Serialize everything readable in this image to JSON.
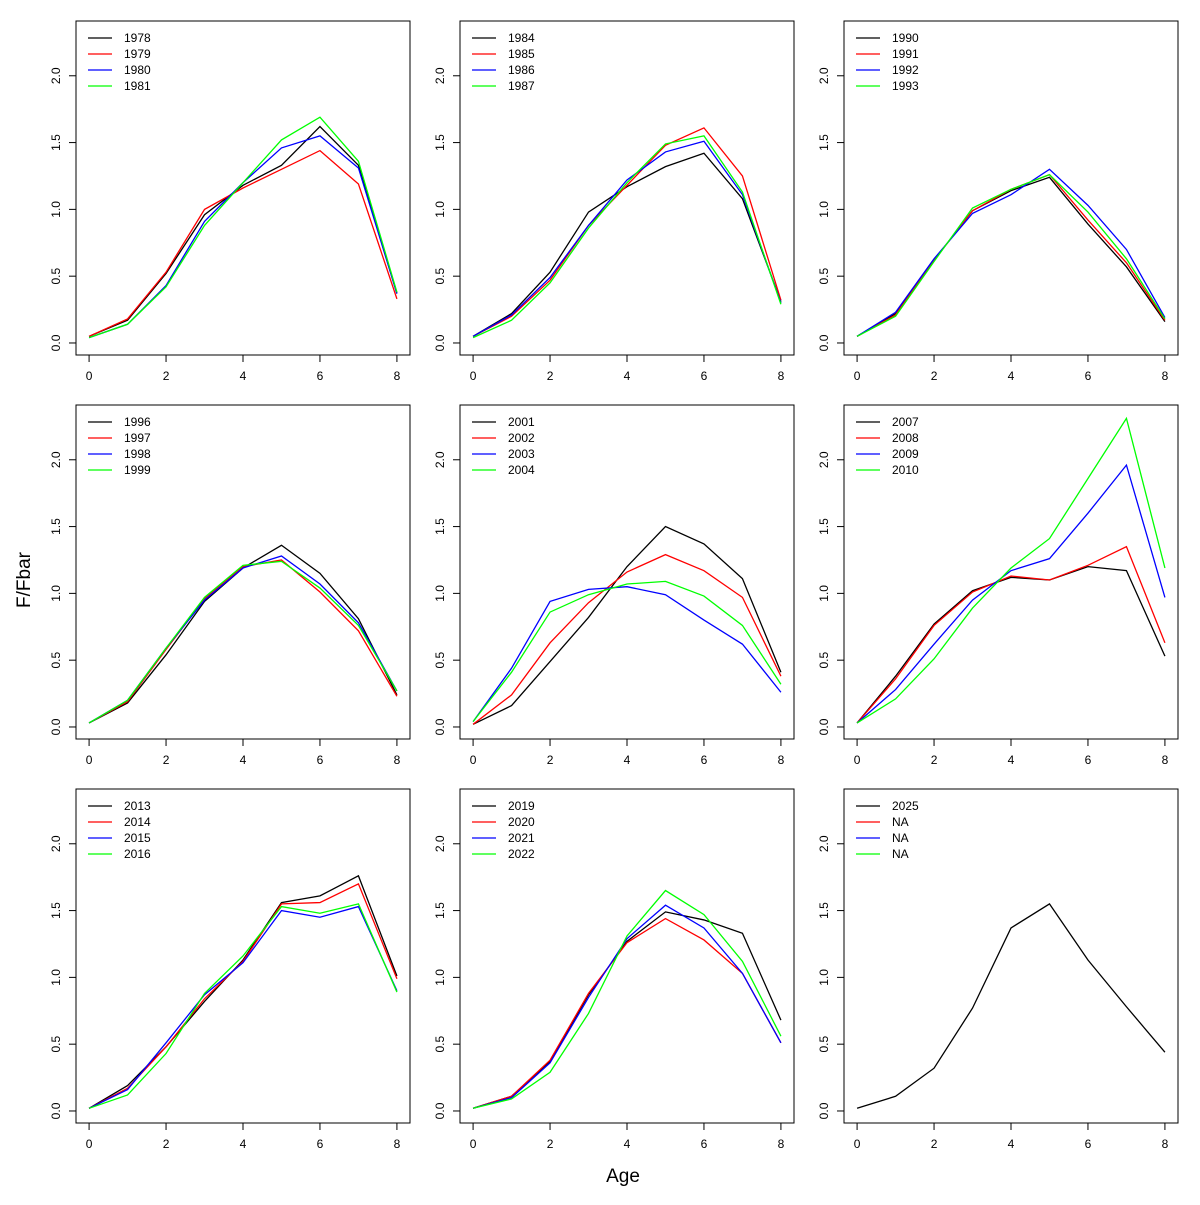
{
  "chart_data": {
    "type": "line",
    "ylabel": "F/Fbar",
    "xlabel": "Age",
    "x": [
      0,
      1,
      2,
      3,
      4,
      5,
      6,
      7,
      8
    ],
    "xticks": [
      0,
      2,
      4,
      6,
      8
    ],
    "yticks": [
      "0.0",
      "0.5",
      "1.0",
      "1.5",
      "2.0"
    ],
    "ylim": [
      -0.09,
      2.41
    ],
    "xlim": [
      -0.34,
      8.34
    ],
    "legend_position": "top-left",
    "series_colors": [
      "#000000",
      "#ff0000",
      "#0000ff",
      "#00ff00"
    ],
    "panels": [
      {
        "series": [
          {
            "name": "1978",
            "values": [
              0.05,
              0.17,
              0.52,
              0.96,
              1.18,
              1.33,
              1.62,
              1.33,
              0.37
            ]
          },
          {
            "name": "1979",
            "values": [
              0.05,
              0.18,
              0.53,
              1.0,
              1.16,
              1.3,
              1.44,
              1.19,
              0.33
            ]
          },
          {
            "name": "1980",
            "values": [
              0.04,
              0.14,
              0.43,
              0.91,
              1.2,
              1.46,
              1.55,
              1.31,
              0.37
            ]
          },
          {
            "name": "1981",
            "values": [
              0.04,
              0.14,
              0.42,
              0.88,
              1.2,
              1.52,
              1.69,
              1.36,
              0.38
            ]
          }
        ]
      },
      {
        "series": [
          {
            "name": "1984",
            "values": [
              0.05,
              0.22,
              0.53,
              0.98,
              1.17,
              1.32,
              1.42,
              1.08,
              0.31
            ]
          },
          {
            "name": "1985",
            "values": [
              0.05,
              0.2,
              0.47,
              0.88,
              1.18,
              1.48,
              1.61,
              1.25,
              0.32
            ]
          },
          {
            "name": "1986",
            "values": [
              0.05,
              0.21,
              0.49,
              0.88,
              1.22,
              1.43,
              1.51,
              1.11,
              0.3
            ]
          },
          {
            "name": "1987",
            "values": [
              0.04,
              0.17,
              0.45,
              0.86,
              1.2,
              1.49,
              1.55,
              1.13,
              0.29
            ]
          }
        ]
      },
      {
        "series": [
          {
            "name": "1990",
            "values": [
              0.05,
              0.22,
              0.62,
              0.99,
              1.14,
              1.24,
              0.89,
              0.57,
              0.16
            ]
          },
          {
            "name": "1991",
            "values": [
              0.05,
              0.21,
              0.62,
              0.99,
              1.15,
              1.26,
              0.92,
              0.6,
              0.17
            ]
          },
          {
            "name": "1992",
            "values": [
              0.05,
              0.23,
              0.63,
              0.97,
              1.11,
              1.3,
              1.03,
              0.7,
              0.19
            ]
          },
          {
            "name": "1993",
            "values": [
              0.05,
              0.2,
              0.61,
              1.01,
              1.15,
              1.26,
              0.98,
              0.63,
              0.18
            ]
          }
        ]
      },
      {
        "series": [
          {
            "name": "1996",
            "values": [
              0.03,
              0.18,
              0.54,
              0.94,
              1.19,
              1.36,
              1.15,
              0.81,
              0.24
            ]
          },
          {
            "name": "1997",
            "values": [
              0.03,
              0.19,
              0.58,
              0.96,
              1.2,
              1.25,
              1.01,
              0.72,
              0.23
            ]
          },
          {
            "name": "1998",
            "values": [
              0.03,
              0.2,
              0.59,
              0.95,
              1.19,
              1.28,
              1.07,
              0.78,
              0.27
            ]
          },
          {
            "name": "1999",
            "values": [
              0.03,
              0.2,
              0.59,
              0.97,
              1.21,
              1.24,
              1.04,
              0.76,
              0.27
            ]
          }
        ]
      },
      {
        "series": [
          {
            "name": "2001",
            "values": [
              0.02,
              0.16,
              0.49,
              0.82,
              1.2,
              1.5,
              1.37,
              1.11,
              0.41
            ]
          },
          {
            "name": "2002",
            "values": [
              0.02,
              0.24,
              0.63,
              0.93,
              1.16,
              1.29,
              1.17,
              0.97,
              0.38
            ]
          },
          {
            "name": "2003",
            "values": [
              0.04,
              0.44,
              0.94,
              1.03,
              1.05,
              0.99,
              0.8,
              0.62,
              0.26
            ]
          },
          {
            "name": "2004",
            "values": [
              0.04,
              0.41,
              0.86,
              0.99,
              1.07,
              1.09,
              0.98,
              0.76,
              0.32
            ]
          }
        ]
      },
      {
        "series": [
          {
            "name": "2007",
            "values": [
              0.03,
              0.38,
              0.77,
              1.02,
              1.12,
              1.1,
              1.2,
              1.17,
              0.53
            ]
          },
          {
            "name": "2008",
            "values": [
              0.03,
              0.36,
              0.76,
              1.01,
              1.13,
              1.1,
              1.21,
              1.35,
              0.63
            ]
          },
          {
            "name": "2009",
            "values": [
              0.03,
              0.28,
              0.62,
              0.95,
              1.17,
              1.26,
              1.6,
              1.96,
              0.97
            ]
          },
          {
            "name": "2010",
            "values": [
              0.03,
              0.21,
              0.51,
              0.89,
              1.19,
              1.41,
              1.86,
              2.31,
              1.19
            ]
          }
        ]
      },
      {
        "series": [
          {
            "name": "2013",
            "values": [
              0.02,
              0.19,
              0.48,
              0.82,
              1.13,
              1.56,
              1.61,
              1.76,
              1.01
            ]
          },
          {
            "name": "2014",
            "values": [
              0.02,
              0.17,
              0.48,
              0.84,
              1.12,
              1.55,
              1.56,
              1.7,
              0.99
            ]
          },
          {
            "name": "2015",
            "values": [
              0.02,
              0.16,
              0.51,
              0.87,
              1.11,
              1.5,
              1.45,
              1.53,
              0.9
            ]
          },
          {
            "name": "2016",
            "values": [
              0.02,
              0.12,
              0.43,
              0.88,
              1.16,
              1.53,
              1.48,
              1.55,
              0.89
            ]
          }
        ]
      },
      {
        "series": [
          {
            "name": "2019",
            "values": [
              0.02,
              0.11,
              0.37,
              0.87,
              1.27,
              1.49,
              1.43,
              1.33,
              0.68
            ]
          },
          {
            "name": "2020",
            "values": [
              0.02,
              0.11,
              0.38,
              0.88,
              1.26,
              1.44,
              1.28,
              1.03,
              0.51
            ]
          },
          {
            "name": "2021",
            "values": [
              0.02,
              0.1,
              0.36,
              0.85,
              1.29,
              1.54,
              1.37,
              1.03,
              0.51
            ]
          },
          {
            "name": "2022",
            "values": [
              0.02,
              0.09,
              0.29,
              0.73,
              1.31,
              1.65,
              1.47,
              1.12,
              0.56
            ]
          }
        ]
      },
      {
        "series": [
          {
            "name": "2025",
            "values": [
              0.02,
              0.11,
              0.32,
              0.77,
              1.37,
              1.55,
              1.13,
              0.78,
              0.44
            ]
          },
          {
            "name": "NA",
            "values": []
          },
          {
            "name": "NA",
            "values": []
          },
          {
            "name": "NA",
            "values": []
          }
        ]
      }
    ]
  }
}
